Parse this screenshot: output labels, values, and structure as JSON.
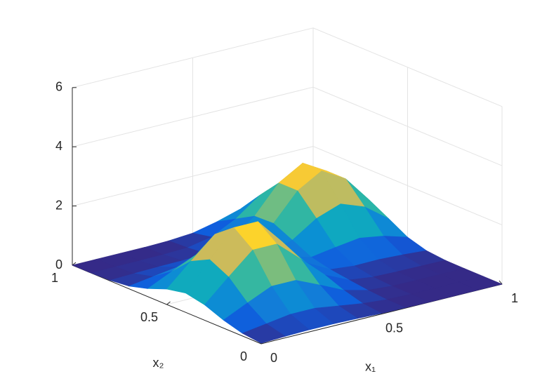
{
  "chart_data": {
    "type": "surface",
    "x": [
      0,
      0.1,
      0.2,
      0.3,
      0.4,
      0.5,
      0.6,
      0.7,
      0.8,
      0.9,
      1
    ],
    "y": [
      0,
      0.1,
      0.2,
      0.3,
      0.4,
      0.5,
      0.6,
      0.7,
      0.8,
      0.9,
      1
    ],
    "z": [
      [
        0.02,
        0.05,
        0.07,
        0.07,
        0.05,
        0.02,
        0.01,
        0,
        0,
        0,
        0
      ],
      [
        0.09,
        0.21,
        0.33,
        0.33,
        0.21,
        0.09,
        0.02,
        0,
        0,
        0,
        0
      ],
      [
        0.27,
        0.65,
        1.01,
        1.01,
        0.65,
        0.27,
        0.07,
        0.01,
        0,
        0,
        0
      ],
      [
        0.52,
        1.26,
        1.97,
        1.97,
        1.26,
        0.52,
        0.15,
        0.05,
        0.03,
        0.02,
        0.01
      ],
      [
        0.65,
        1.58,
        2.46,
        2.46,
        1.58,
        0.67,
        0.24,
        0.16,
        0.17,
        0.13,
        0.07
      ],
      [
        0.52,
        1.26,
        1.97,
        1.97,
        1.28,
        0.6,
        0.39,
        0.52,
        0.63,
        0.5,
        0.26
      ],
      [
        0.27,
        0.65,
        1.01,
        1.02,
        0.69,
        0.47,
        0.7,
        1.23,
        1.52,
        1.22,
        0.62
      ],
      [
        0.09,
        0.21,
        0.33,
        0.34,
        0.28,
        0.41,
        1.0,
        1.9,
        2.37,
        1.9,
        0.97
      ],
      [
        0.02,
        0.05,
        0.07,
        0.08,
        0.12,
        0.34,
        0.98,
        1.9,
        2.37,
        1.9,
        0.97
      ],
      [
        0,
        0.01,
        0.01,
        0.02,
        0.05,
        0.21,
        0.62,
        1.22,
        1.52,
        1.22,
        0.62
      ],
      [
        0,
        0,
        0,
        0,
        0.02,
        0.08,
        0.26,
        0.5,
        0.62,
        0.5,
        0.26
      ]
    ],
    "xlabel": "x₁",
    "ylabel": "x₂",
    "xlim": [
      0,
      1
    ],
    "ylim": [
      0,
      1
    ],
    "zlim": [
      0,
      6
    ],
    "xticks": [
      0,
      0.5,
      1
    ],
    "yticks": [
      0,
      0.5,
      1
    ],
    "zticks": [
      0,
      2,
      4,
      6
    ],
    "grid": true,
    "colormap": "parula"
  }
}
